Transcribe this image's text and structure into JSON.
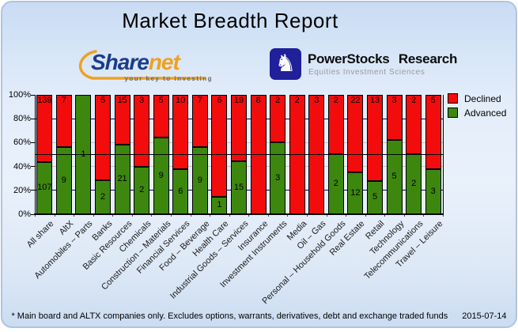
{
  "title": "Market Breadth Report",
  "logos": {
    "sharenet": {
      "text_share": "Share",
      "text_net": "net",
      "tagline": "your key to investing"
    },
    "powerstocks": {
      "title": "PowerStocks Research",
      "tagline": "Equities Investment Sciences",
      "icon": "knight-icon",
      "knight_glyph": "♞"
    }
  },
  "chart_data": {
    "type": "bar",
    "stacked": true,
    "title": "Market Breadth Report",
    "categories": [
      "All share",
      "AltX",
      "Automobiles – Parts",
      "Banks",
      "Basic Resources",
      "Chemicals",
      "Construction – Materials",
      "Financial Services",
      "Food – Beverage",
      "Health Care",
      "Industrial Goods – Services",
      "Insurance",
      "Investment Instruments",
      "Media",
      "Oil – Gas",
      "Personal – Household Goods",
      "Real Estate",
      "Retail",
      "Technology",
      "Telecommunications",
      "Travel – Leisure"
    ],
    "series": [
      {
        "name": "Declined",
        "color": "#F20C0C",
        "values": [
          139,
          7,
          0,
          5,
          15,
          3,
          5,
          10,
          7,
          6,
          19,
          8,
          2,
          2,
          3,
          2,
          22,
          13,
          3,
          2,
          5
        ]
      },
      {
        "name": "Advanced",
        "color": "#3E870E",
        "values": [
          107,
          9,
          1,
          2,
          21,
          2,
          9,
          6,
          9,
          1,
          15,
          0,
          3,
          0,
          0,
          2,
          12,
          5,
          5,
          2,
          3
        ]
      }
    ],
    "value_unit": "number of companies",
    "y_ticks": [
      "100%",
      "80%",
      "60%",
      "40%",
      "20%",
      "0%"
    ],
    "ylim": [
      0,
      100
    ],
    "ylabel": "",
    "xlabel": "",
    "grid": {
      "navy_at": [
        80,
        20
      ],
      "gray_at": [
        60,
        40
      ],
      "black_at": [
        50
      ],
      "navy_color": "#000080",
      "gray_color": "#C4C4C4",
      "black_color": "#000000"
    },
    "legend_position": "right"
  },
  "footer": {
    "note": "* Main board and ALTX companies only. Excludes options, warrants, derivatives, debt and exchange traded funds",
    "date": "2015-07-14"
  }
}
